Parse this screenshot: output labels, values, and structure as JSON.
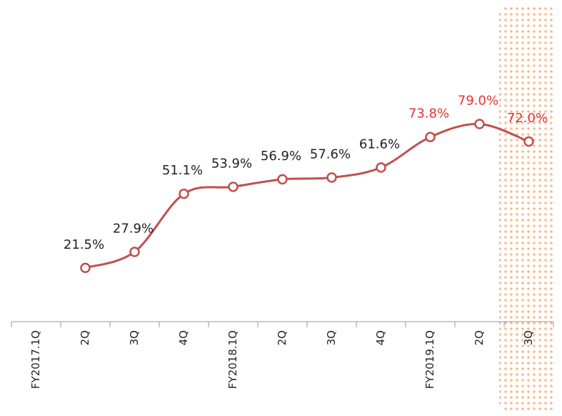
{
  "chart_data": {
    "type": "line",
    "categories": [
      "FY2017.1Q",
      "2Q",
      "3Q",
      "4Q",
      "FY2018.1Q",
      "2Q",
      "3Q",
      "4Q",
      "FY2019.1Q",
      "2Q",
      "3Q"
    ],
    "values": [
      null,
      21.5,
      27.9,
      51.1,
      53.9,
      56.9,
      57.6,
      61.6,
      73.8,
      79.0,
      72.0
    ],
    "value_labels": [
      null,
      "21.5%",
      "27.9%",
      "51.1%",
      "53.9%",
      "56.9%",
      "57.6%",
      "61.6%",
      "73.8%",
      "79.0%",
      "72.0%"
    ],
    "label_colors": [
      "#222222",
      "#222222",
      "#222222",
      "#222222",
      "#222222",
      "#222222",
      "#222222",
      "#222222",
      "#e8312f",
      "#e8312f",
      "#e8312f"
    ],
    "color": "#c0504d",
    "highlight_color": "#f9b98a",
    "highlight_index": 10,
    "ylim": [
      0,
      90
    ]
  }
}
